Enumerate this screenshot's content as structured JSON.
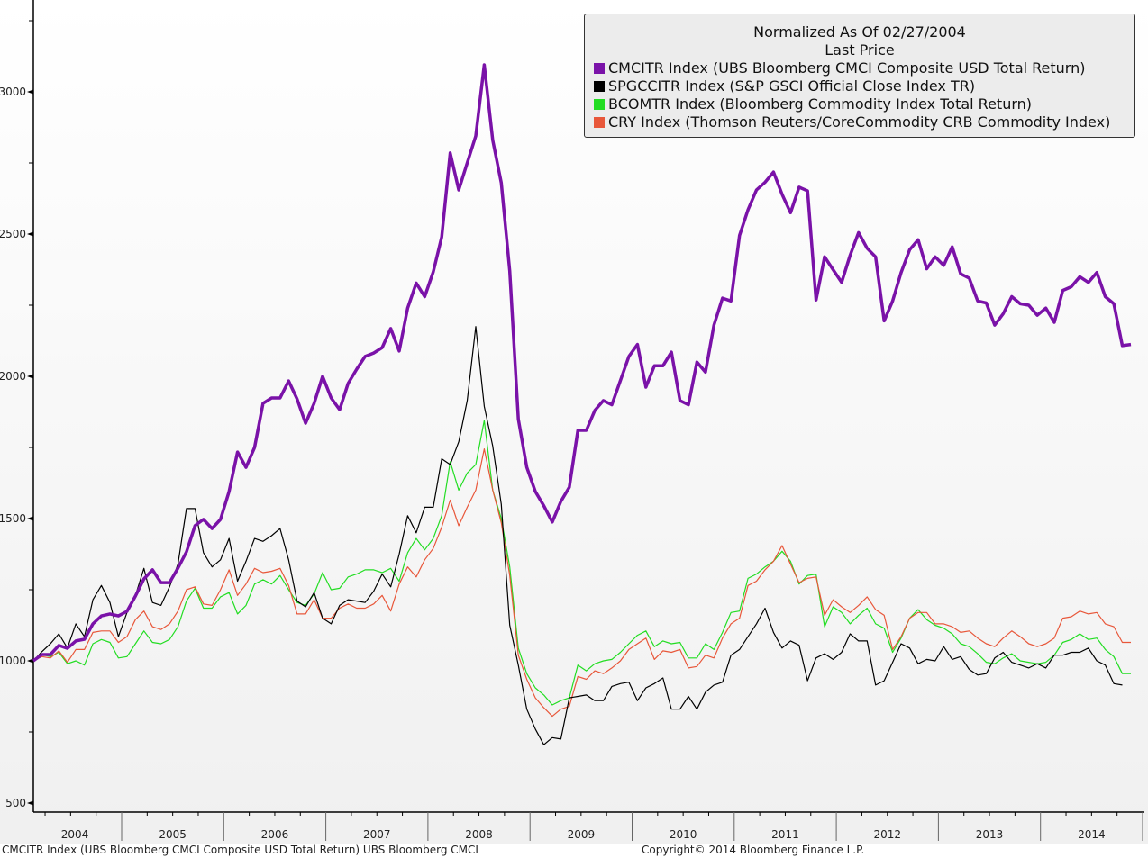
{
  "legend": {
    "title": "Normalized As Of 02/27/2004",
    "subtitle": "Last Price",
    "items": [
      {
        "label": "CMCITR Index (UBS Bloomberg CMCI Composite USD Total Return)",
        "color": "#7a12a8"
      },
      {
        "label": "SPGCCITR Index (S&P GSCI Official Close Index TR)",
        "color": "#000000"
      },
      {
        "label": "BCOMTR Index (Bloomberg Commodity Index Total Return)",
        "color": "#22dd22"
      },
      {
        "label": "CRY Index (Thomson Reuters/CoreCommodity CRB Commodity Index)",
        "color": "#e8573a"
      }
    ]
  },
  "footer": {
    "source": "CMCITR Index (UBS Bloomberg CMCI Composite USD Total Return) UBS Bloomberg CMCI",
    "copyright": "Copyright© 2014 Bloomberg Finance L.P."
  },
  "chart_data": {
    "type": "line",
    "title": "Normalized As Of 02/27/2004",
    "subtitle": "Last Price",
    "xlabel": "",
    "ylabel": "",
    "x_start": "2004-02",
    "x_frequency": "monthly",
    "x_tick_labels": [
      "2004",
      "2005",
      "2006",
      "2007",
      "2008",
      "2009",
      "2010",
      "2011",
      "2012",
      "2013",
      "2014"
    ],
    "y_tick_labels": [
      "500",
      "1000",
      "1500",
      "2000",
      "2500",
      "3000"
    ],
    "y_ticks": [
      500,
      1000,
      1500,
      2000,
      2500,
      3000
    ],
    "ylim": [
      480,
      3330
    ],
    "grid": false,
    "legend_position": "top-right",
    "series": [
      {
        "name": "CMCITR Index (UBS Bloomberg CMCI Composite USD Total Return)",
        "color": "#7a12a8",
        "values": [
          1000,
          1022,
          1022,
          1054,
          1044,
          1070,
          1076,
          1130,
          1158,
          1165,
          1158,
          1174,
          1228,
          1288,
          1320,
          1275,
          1275,
          1326,
          1383,
          1475,
          1497,
          1465,
          1497,
          1595,
          1734,
          1680,
          1750,
          1905,
          1924,
          1924,
          1984,
          1920,
          1835,
          1905,
          2000,
          1924,
          1883,
          1975,
          2025,
          2070,
          2082,
          2101,
          2168,
          2089,
          2240,
          2328,
          2280,
          2367,
          2490,
          2785,
          2655,
          2750,
          2845,
          3095,
          2830,
          2680,
          2370,
          1850,
          1680,
          1595,
          1545,
          1488,
          1560,
          1610,
          1810,
          1810,
          1880,
          1915,
          1900,
          1985,
          2070,
          2112,
          1962,
          2037,
          2037,
          2085,
          1915,
          1900,
          2050,
          2015,
          2180,
          2275,
          2265,
          2495,
          2585,
          2655,
          2682,
          2718,
          2640,
          2575,
          2665,
          2652,
          2268,
          2420,
          2375,
          2330,
          2425,
          2505,
          2450,
          2420,
          2195,
          2265,
          2365,
          2445,
          2480,
          2378,
          2420,
          2390,
          2455,
          2360,
          2345,
          2265,
          2258,
          2180,
          2220,
          2280,
          2255,
          2250,
          2215,
          2240,
          2190,
          2302,
          2315,
          2350,
          2330,
          2365,
          2280,
          2255,
          2108,
          2112
        ]
      },
      {
        "name": "SPGCCITR Index (S&P GSCI Official Close Index TR)",
        "color": "#000000",
        "values": [
          1000,
          1032,
          1060,
          1095,
          1045,
          1130,
          1085,
          1215,
          1265,
          1205,
          1085,
          1170,
          1230,
          1325,
          1205,
          1195,
          1260,
          1340,
          1535,
          1535,
          1380,
          1330,
          1355,
          1430,
          1280,
          1350,
          1430,
          1420,
          1440,
          1465,
          1355,
          1210,
          1190,
          1240,
          1150,
          1130,
          1195,
          1215,
          1210,
          1205,
          1245,
          1305,
          1260,
          1375,
          1510,
          1450,
          1540,
          1540,
          1710,
          1690,
          1770,
          1915,
          2175,
          1895,
          1755,
          1550,
          1125,
          985,
          830,
          760,
          705,
          730,
          725,
          870,
          875,
          880,
          860,
          860,
          910,
          920,
          925,
          860,
          905,
          920,
          940,
          830,
          830,
          875,
          830,
          890,
          915,
          925,
          1020,
          1040,
          1085,
          1130,
          1185,
          1100,
          1045,
          1070,
          1055,
          930,
          1010,
          1025,
          1005,
          1030,
          1095,
          1070,
          1070,
          915,
          930,
          995,
          1060,
          1045,
          990,
          1005,
          1000,
          1050,
          1005,
          1015,
          970,
          950,
          955,
          1010,
          1030,
          995,
          985,
          975,
          990,
          975,
          1020,
          1020,
          1030,
          1030,
          1045,
          1000,
          985,
          920,
          915
        ]
      },
      {
        "name": "BCOMTR Index (Bloomberg Commodity Index Total Return)",
        "color": "#22dd22",
        "values": [
          1000,
          1022,
          1015,
          1030,
          990,
          1000,
          985,
          1060,
          1075,
          1065,
          1010,
          1015,
          1060,
          1105,
          1065,
          1060,
          1075,
          1120,
          1210,
          1255,
          1185,
          1185,
          1225,
          1240,
          1165,
          1195,
          1270,
          1285,
          1270,
          1300,
          1250,
          1205,
          1195,
          1235,
          1310,
          1250,
          1255,
          1295,
          1305,
          1320,
          1320,
          1310,
          1325,
          1280,
          1380,
          1430,
          1390,
          1430,
          1510,
          1700,
          1600,
          1660,
          1690,
          1845,
          1600,
          1500,
          1330,
          1045,
          955,
          905,
          880,
          845,
          860,
          870,
          985,
          965,
          990,
          1000,
          1005,
          1030,
          1060,
          1090,
          1105,
          1050,
          1070,
          1060,
          1065,
          1010,
          1010,
          1060,
          1040,
          1100,
          1170,
          1175,
          1290,
          1305,
          1330,
          1350,
          1385,
          1350,
          1270,
          1300,
          1305,
          1120,
          1190,
          1170,
          1130,
          1160,
          1185,
          1130,
          1115,
          1030,
          1080,
          1150,
          1180,
          1145,
          1125,
          1115,
          1095,
          1060,
          1050,
          1025,
          995,
          990,
          1010,
          1025,
          1000,
          995,
          990,
          995,
          1020,
          1065,
          1075,
          1095,
          1075,
          1080,
          1040,
          1015,
          955,
          955
        ]
      },
      {
        "name": "CRY Index (Thomson Reuters/CoreCommodity CRB Commodity Index)",
        "color": "#e8573a",
        "values": [
          1000,
          1015,
          1010,
          1035,
          995,
          1040,
          1040,
          1100,
          1105,
          1105,
          1065,
          1085,
          1145,
          1175,
          1120,
          1110,
          1130,
          1175,
          1250,
          1260,
          1200,
          1195,
          1250,
          1320,
          1230,
          1270,
          1325,
          1310,
          1315,
          1325,
          1265,
          1165,
          1165,
          1215,
          1150,
          1150,
          1185,
          1200,
          1185,
          1185,
          1200,
          1230,
          1175,
          1270,
          1330,
          1295,
          1355,
          1395,
          1470,
          1565,
          1475,
          1540,
          1600,
          1745,
          1600,
          1485,
          1300,
          1020,
          935,
          870,
          835,
          805,
          830,
          840,
          945,
          935,
          965,
          955,
          975,
          1000,
          1040,
          1060,
          1080,
          1005,
          1035,
          1030,
          1040,
          975,
          980,
          1020,
          1010,
          1080,
          1130,
          1150,
          1265,
          1280,
          1320,
          1350,
          1405,
          1340,
          1275,
          1290,
          1295,
          1160,
          1215,
          1190,
          1170,
          1195,
          1225,
          1180,
          1160,
          1040,
          1085,
          1150,
          1170,
          1170,
          1130,
          1130,
          1120,
          1100,
          1105,
          1080,
          1060,
          1050,
          1080,
          1105,
          1085,
          1060,
          1050,
          1060,
          1080,
          1150,
          1155,
          1175,
          1165,
          1170,
          1130,
          1120,
          1065,
          1065
        ]
      }
    ]
  }
}
